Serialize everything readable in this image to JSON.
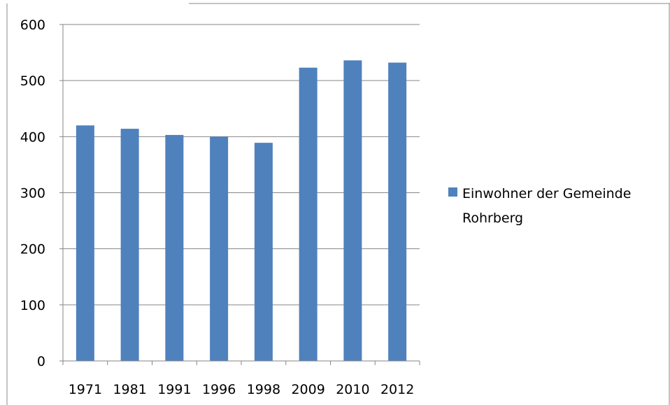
{
  "chart_data": {
    "type": "bar",
    "title": "",
    "xlabel": "",
    "ylabel": "",
    "categories": [
      "1971",
      "1981",
      "1991",
      "1996",
      "1998",
      "2009",
      "2010",
      "2012"
    ],
    "series": [
      {
        "name": "Einwohner der Gemeinde Rohrberg",
        "values": [
          420,
          414,
          403,
          400,
          389,
          523,
          536,
          532
        ]
      }
    ],
    "ylim": [
      0,
      600
    ],
    "yticks": [
      0,
      100,
      200,
      300,
      400,
      500,
      600
    ],
    "grid": true,
    "legend_position": "right",
    "bar_color": "#4F81BD",
    "legend_lines": [
      "Einwohner der Gemeinde",
      "Rohrberg"
    ]
  }
}
